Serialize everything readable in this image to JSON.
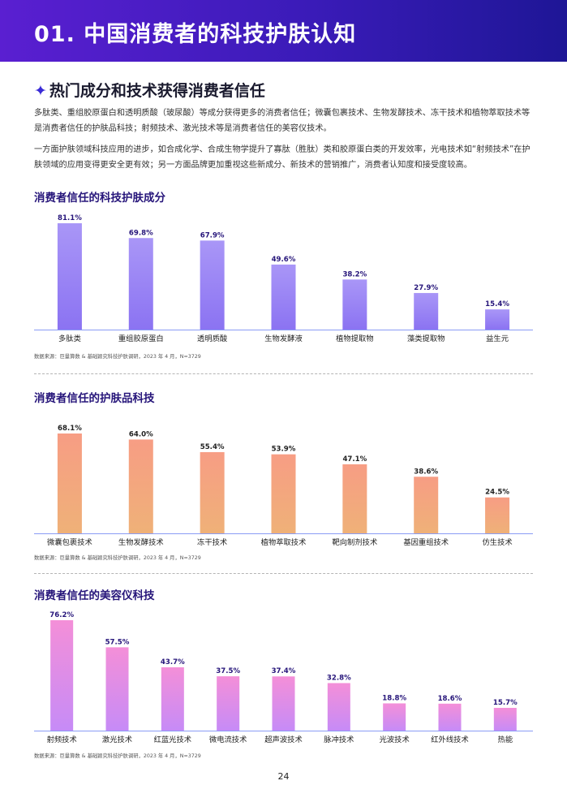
{
  "header": {
    "title": "01. 中国消费者的科技护肤认知"
  },
  "section": {
    "star": "✦",
    "title": "热门成分和技术获得消费者信任"
  },
  "paragraphs": [
    "多肽类、重组胶原蛋白和透明质酸（玻尿酸）等成分获得更多的消费者信任；微囊包裹技术、生物发酵技术、冻干技术和植物萃取技术等是消费者信任的护肤品科技；射频技术、激光技术等是消费者信任的美容仪技术。",
    "一方面护肤领域科技应用的进步，如合成化学、合成生物学提升了寡肽（胜肽）类和胶原蛋白类的开发效率，光电技术如“射频技术”在护肤领域的应用变得更安全更有效；另一方面品牌更加重视这些新成分、新技术的营销推广，消费者认知度和接受度较高。"
  ],
  "source": "数据来源：巨量算数 & 基础颖究科技护肤调研，2023 年 4 月，N=3729",
  "page_number": "24",
  "colors": {
    "header_start": "#5a1fd1",
    "header_end": "#1e1696",
    "chart1_bar_top": "#a996f7",
    "chart1_bar_bottom": "#8b73f2",
    "chart1_label": "#26157a",
    "chart2_bar_top": "#f79d84",
    "chart2_bar_bottom": "#efb178",
    "chart2_label": "#222222",
    "chart3_bar_top": "#f48fd8",
    "chart3_bar_bottom": "#c68bf7",
    "chart3_label": "#26157a",
    "axis": "#8a9cf5"
  },
  "chart_data": [
    {
      "type": "bar",
      "title": "消费者信任的科技护肤成分",
      "categories": [
        "多肽类",
        "重组胶原蛋白",
        "透明质酸",
        "生物发酵液",
        "植物提取物",
        "藻类提取物",
        "益生元"
      ],
      "values": [
        81.1,
        69.8,
        67.9,
        49.6,
        38.2,
        27.9,
        15.4
      ],
      "value_labels": [
        "81.1%",
        "69.8%",
        "67.9%",
        "49.6%",
        "38.2%",
        "27.9%",
        "15.4%"
      ],
      "unit": "%",
      "ylim": [
        0,
        81.1
      ],
      "grid": false,
      "legend": "none"
    },
    {
      "type": "bar",
      "title": "消费者信任的护肤品科技",
      "categories": [
        "微囊包裹技术",
        "生物发酵技术",
        "冻干技术",
        "植物萃取技术",
        "靶向制剂技术",
        "基因重组技术",
        "仿生技术"
      ],
      "values": [
        68.1,
        64.0,
        55.4,
        53.9,
        47.1,
        38.6,
        24.5
      ],
      "value_labels": [
        "68.1%",
        "64.0%",
        "55.4%",
        "53.9%",
        "47.1%",
        "38.6%",
        "24.5%"
      ],
      "unit": "%",
      "ylim": [
        0,
        68.1
      ],
      "grid": false,
      "legend": "none"
    },
    {
      "type": "bar",
      "title": "消费者信任的美容仪科技",
      "categories": [
        "射频技术",
        "激光技术",
        "红蓝光技术",
        "微电流技术",
        "超声波技术",
        "脉冲技术",
        "光波技术",
        "红外线技术",
        "热能"
      ],
      "values": [
        76.2,
        57.5,
        43.7,
        37.5,
        37.4,
        32.8,
        18.8,
        18.6,
        15.7
      ],
      "value_labels": [
        "76.2%",
        "57.5%",
        "43.7%",
        "37.5%",
        "37.4%",
        "32.8%",
        "18.8%",
        "18.6%",
        "15.7%"
      ],
      "unit": "%",
      "ylim": [
        0,
        76.2
      ],
      "grid": false,
      "legend": "none"
    }
  ]
}
